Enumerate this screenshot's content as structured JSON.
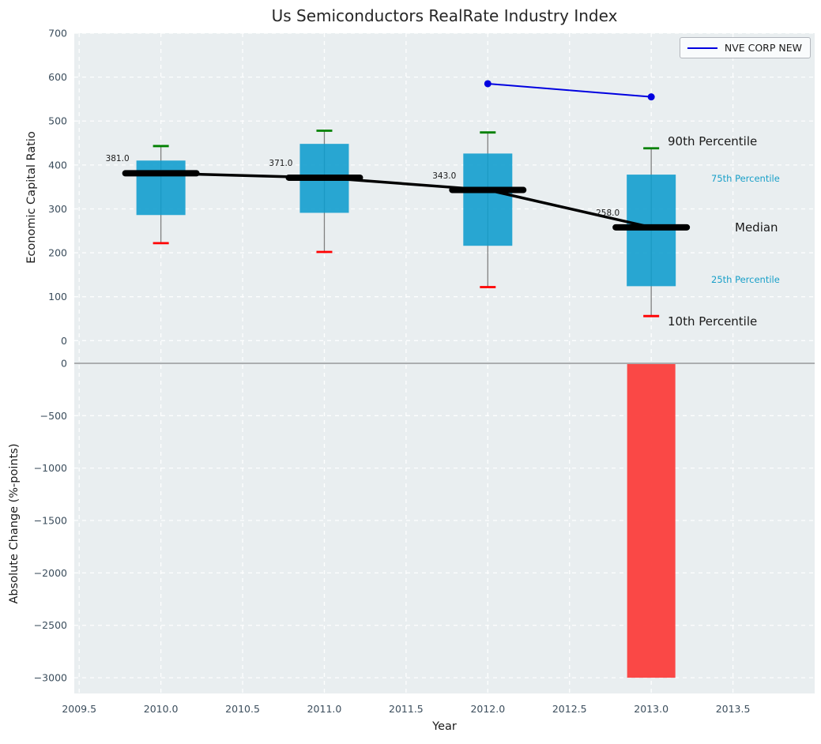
{
  "figure": {
    "colors": {
      "plot_background": "#e9eef0",
      "grid": "#ffffff",
      "tick_label": "#3b4d5c",
      "title": "#262626"
    }
  },
  "x_axis": {
    "label": "Year",
    "xlim": [
      2009.47,
      2014.0
    ],
    "ticks": [
      {
        "v": 2009.5,
        "label": "2009.5"
      },
      {
        "v": 2010.0,
        "label": "2010.0"
      },
      {
        "v": 2010.5,
        "label": "2010.5"
      },
      {
        "v": 2011.0,
        "label": "2011.0"
      },
      {
        "v": 2011.5,
        "label": "2011.5"
      },
      {
        "v": 2012.0,
        "label": "2012.0"
      },
      {
        "v": 2012.5,
        "label": "2012.5"
      },
      {
        "v": 2013.0,
        "label": "2013.0"
      },
      {
        "v": 2013.5,
        "label": "2013.5"
      }
    ]
  },
  "chart_data": [
    {
      "type": "box",
      "title": "Us Semiconductors RealRate Industry Index",
      "ylabel": "Economic Capital Ratio",
      "ylim": [
        -30,
        700
      ],
      "grid": true,
      "legend": {
        "label": "NVE CORP NEW",
        "position": "upper right",
        "line_color": "#0000e0"
      },
      "yticks": [
        {
          "v": 0,
          "label": "0"
        },
        {
          "v": 100,
          "label": "100"
        },
        {
          "v": 200,
          "label": "200"
        },
        {
          "v": 300,
          "label": "300"
        },
        {
          "v": 400,
          "label": "400"
        },
        {
          "v": 500,
          "label": "500"
        },
        {
          "v": 600,
          "label": "600"
        },
        {
          "v": 700,
          "label": "700"
        }
      ],
      "box_color": "#0d9ccd",
      "whisker_color": "#808080",
      "cap_high_color": "#008000",
      "cap_low_color": "#ff0000",
      "median_color": "#000000",
      "boxes": [
        {
          "year": 2010,
          "p10": 222,
          "p25": 286,
          "median": 381,
          "p75": 410,
          "p90": 443,
          "label": "381.0"
        },
        {
          "year": 2011,
          "p10": 202,
          "p25": 291,
          "median": 371,
          "p75": 448,
          "p90": 478,
          "label": "371.0"
        },
        {
          "year": 2012,
          "p10": 122,
          "p25": 216,
          "median": 343,
          "p75": 426,
          "p90": 474,
          "label": "343.0"
        },
        {
          "year": 2013,
          "p10": 56,
          "p25": 124,
          "median": 258,
          "p75": 378,
          "p90": 438,
          "label": "258.0"
        }
      ],
      "series": [
        {
          "name": "NVE CORP NEW",
          "color": "#0000e0",
          "x": [
            2012,
            2013
          ],
          "y": [
            585,
            555
          ]
        }
      ],
      "annotations": [
        {
          "text": "90th Percentile",
          "color": "#1a1a1a",
          "style": "large"
        },
        {
          "text": "75th Percentile",
          "color": "#189fc8",
          "style": "small"
        },
        {
          "text": "Median",
          "color": "#1a1a1a",
          "style": "large"
        },
        {
          "text": "25th Percentile",
          "color": "#189fc8",
          "style": "small"
        },
        {
          "text": "10th Percentile",
          "color": "#1a1a1a",
          "style": "large"
        }
      ]
    },
    {
      "type": "bar",
      "ylabel": "Absolute Change (%-points)",
      "ylim": [
        -3150,
        90
      ],
      "grid": true,
      "yticks": [
        {
          "v": 0,
          "label": "0"
        },
        {
          "v": -500,
          "label": "−500"
        },
        {
          "v": -1000,
          "label": "−1000"
        },
        {
          "v": -1500,
          "label": "−1500"
        },
        {
          "v": -2000,
          "label": "−2000"
        },
        {
          "v": -2500,
          "label": "−2500"
        },
        {
          "v": -3000,
          "label": "−3000"
        }
      ],
      "bar_color": "#fb3e3c",
      "zero_line_color": "#abaeb0",
      "bars": [
        {
          "year": 2013,
          "value": -3000
        }
      ]
    }
  ]
}
